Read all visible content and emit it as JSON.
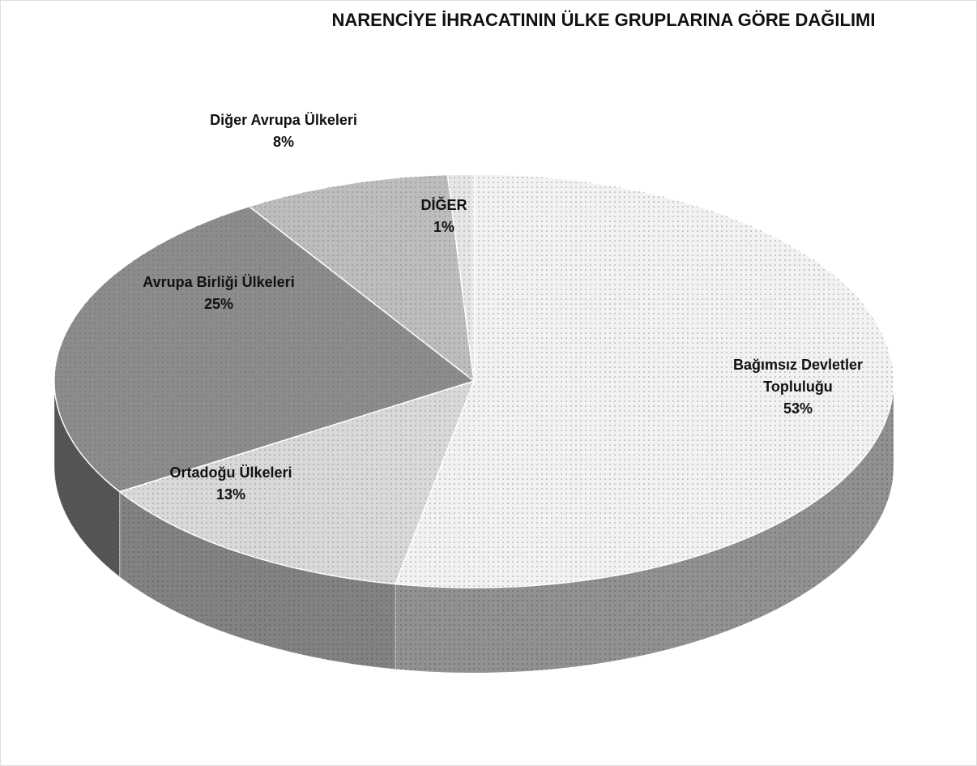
{
  "chart_data": {
    "type": "pie",
    "title": "NARENCİYE İHRACATININ ÜLKE GRUPLARINA GÖRE DAĞILIMI",
    "categories": [
      "Bağımsız Devletler Topluluğu",
      "Ortadoğu Ülkeleri",
      "Avrupa Birliği Ülkeleri",
      "Diğer Avrupa Ülkeleri",
      "DİĞER"
    ],
    "values": [
      53,
      13,
      25,
      8,
      1
    ],
    "value_labels": [
      "53%",
      "13%",
      "25%",
      "8%",
      "1%"
    ],
    "colors": [
      "#f2f2f2",
      "#d9d9d9",
      "#8c8c8c",
      "#bdbdbd",
      "#e6e6e6"
    ]
  }
}
